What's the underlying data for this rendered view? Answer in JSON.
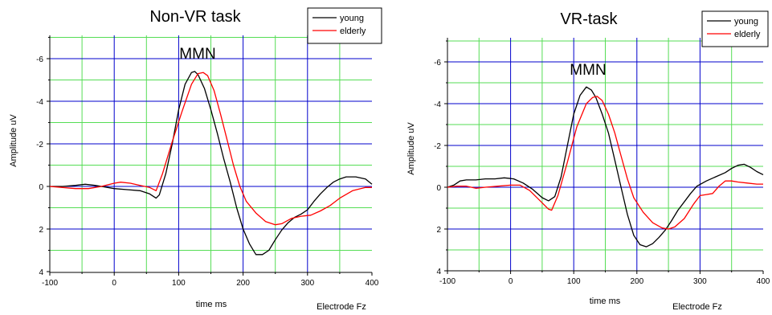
{
  "colors": {
    "young": "#000000",
    "elderly": "#ff0000",
    "major_grid": "#0000cc",
    "minor_grid": "#55dd55"
  },
  "chart_data": [
    {
      "type": "line",
      "title": "Non-VR task",
      "xlabel": "time ms",
      "ylabel": "Amplitude uV",
      "footer_label": "Electrode Fz",
      "annotation": "MMN",
      "xlim": [
        -100,
        400
      ],
      "ylim": [
        4,
        -7
      ],
      "y_inverted": true,
      "x_ticks": [
        "-100",
        "0",
        "100",
        "200",
        "300",
        "400"
      ],
      "y_ticks": [
        "-6",
        "-4",
        "-2",
        "0",
        "2",
        "4"
      ],
      "grid": true,
      "legend_position": "top-right",
      "series": [
        {
          "name": "young",
          "color_key": "young",
          "points": [
            [
              -100,
              0
            ],
            [
              -80,
              0
            ],
            [
              -60,
              -0.05
            ],
            [
              -45,
              -0.1
            ],
            [
              -30,
              -0.05
            ],
            [
              -10,
              0.05
            ],
            [
              0,
              0.1
            ],
            [
              20,
              0.15
            ],
            [
              40,
              0.2
            ],
            [
              55,
              0.35
            ],
            [
              65,
              0.55
            ],
            [
              70,
              0.4
            ],
            [
              80,
              -0.6
            ],
            [
              90,
              -2
            ],
            [
              100,
              -3.6
            ],
            [
              110,
              -4.8
            ],
            [
              120,
              -5.35
            ],
            [
              125,
              -5.4
            ],
            [
              130,
              -5.25
            ],
            [
              140,
              -4.6
            ],
            [
              150,
              -3.6
            ],
            [
              160,
              -2.5
            ],
            [
              170,
              -1.3
            ],
            [
              180,
              -0.2
            ],
            [
              190,
              1
            ],
            [
              200,
              2
            ],
            [
              210,
              2.7
            ],
            [
              220,
              3.2
            ],
            [
              230,
              3.2
            ],
            [
              240,
              3
            ],
            [
              250,
              2.5
            ],
            [
              260,
              2.05
            ],
            [
              270,
              1.7
            ],
            [
              280,
              1.45
            ],
            [
              290,
              1.3
            ],
            [
              300,
              1.1
            ],
            [
              310,
              0.7
            ],
            [
              320,
              0.35
            ],
            [
              330,
              0.05
            ],
            [
              340,
              -0.2
            ],
            [
              350,
              -0.35
            ],
            [
              360,
              -0.45
            ],
            [
              375,
              -0.45
            ],
            [
              390,
              -0.35
            ],
            [
              400,
              -0.1
            ]
          ]
        },
        {
          "name": "elderly",
          "color_key": "elderly",
          "points": [
            [
              -100,
              0
            ],
            [
              -80,
              0.05
            ],
            [
              -60,
              0.1
            ],
            [
              -40,
              0.1
            ],
            [
              -20,
              0
            ],
            [
              0,
              -0.15
            ],
            [
              10,
              -0.2
            ],
            [
              25,
              -0.15
            ],
            [
              40,
              -0.05
            ],
            [
              55,
              0.05
            ],
            [
              65,
              0.2
            ],
            [
              75,
              -0.6
            ],
            [
              90,
              -2.1
            ],
            [
              105,
              -3.5
            ],
            [
              120,
              -4.8
            ],
            [
              130,
              -5.3
            ],
            [
              138,
              -5.35
            ],
            [
              145,
              -5.2
            ],
            [
              155,
              -4.5
            ],
            [
              165,
              -3.4
            ],
            [
              175,
              -2.2
            ],
            [
              185,
              -1
            ],
            [
              195,
              0
            ],
            [
              205,
              0.7
            ],
            [
              220,
              1.25
            ],
            [
              235,
              1.65
            ],
            [
              250,
              1.8
            ],
            [
              260,
              1.75
            ],
            [
              275,
              1.5
            ],
            [
              290,
              1.4
            ],
            [
              305,
              1.35
            ],
            [
              320,
              1.15
            ],
            [
              335,
              0.9
            ],
            [
              350,
              0.55
            ],
            [
              370,
              0.2
            ],
            [
              390,
              0.05
            ],
            [
              400,
              0.05
            ]
          ]
        }
      ]
    },
    {
      "type": "line",
      "title": "VR-task",
      "xlabel": "time ms",
      "ylabel": "Amplitude uV",
      "footer_label": "Electrode Fz",
      "annotation": "MMN",
      "xlim": [
        -100,
        400
      ],
      "ylim": [
        4,
        -7
      ],
      "y_inverted": true,
      "x_ticks": [
        "-100",
        "0",
        "100",
        "200",
        "300",
        "400"
      ],
      "y_ticks": [
        "-6",
        "-4",
        "-2",
        "0",
        "2",
        "4"
      ],
      "grid": true,
      "legend_position": "top-right",
      "series": [
        {
          "name": "young",
          "color_key": "young",
          "points": [
            [
              -100,
              0
            ],
            [
              -90,
              -0.1
            ],
            [
              -80,
              -0.3
            ],
            [
              -70,
              -0.35
            ],
            [
              -55,
              -0.35
            ],
            [
              -40,
              -0.4
            ],
            [
              -25,
              -0.4
            ],
            [
              -10,
              -0.45
            ],
            [
              5,
              -0.4
            ],
            [
              20,
              -0.2
            ],
            [
              35,
              0.1
            ],
            [
              50,
              0.5
            ],
            [
              60,
              0.65
            ],
            [
              70,
              0.45
            ],
            [
              80,
              -0.5
            ],
            [
              90,
              -2
            ],
            [
              100,
              -3.5
            ],
            [
              110,
              -4.4
            ],
            [
              120,
              -4.8
            ],
            [
              128,
              -4.65
            ],
            [
              135,
              -4.3
            ],
            [
              145,
              -3.5
            ],
            [
              155,
              -2.6
            ],
            [
              165,
              -1.3
            ],
            [
              175,
              0
            ],
            [
              185,
              1.3
            ],
            [
              195,
              2.3
            ],
            [
              205,
              2.75
            ],
            [
              215,
              2.85
            ],
            [
              225,
              2.7
            ],
            [
              235,
              2.4
            ],
            [
              245,
              2.05
            ],
            [
              255,
              1.6
            ],
            [
              265,
              1.1
            ],
            [
              275,
              0.7
            ],
            [
              285,
              0.3
            ],
            [
              295,
              -0.05
            ],
            [
              310,
              -0.3
            ],
            [
              325,
              -0.5
            ],
            [
              340,
              -0.7
            ],
            [
              350,
              -0.9
            ],
            [
              360,
              -1.05
            ],
            [
              370,
              -1.1
            ],
            [
              380,
              -0.95
            ],
            [
              390,
              -0.75
            ],
            [
              400,
              -0.6
            ]
          ]
        },
        {
          "name": "elderly",
          "color_key": "elderly",
          "points": [
            [
              -100,
              0
            ],
            [
              -85,
              -0.05
            ],
            [
              -70,
              -0.05
            ],
            [
              -55,
              0.05
            ],
            [
              -40,
              0
            ],
            [
              -20,
              -0.05
            ],
            [
              0,
              -0.1
            ],
            [
              15,
              -0.1
            ],
            [
              30,
              0.15
            ],
            [
              45,
              0.6
            ],
            [
              60,
              1.05
            ],
            [
              65,
              1.1
            ],
            [
              75,
              0.4
            ],
            [
              90,
              -1.2
            ],
            [
              105,
              -2.9
            ],
            [
              120,
              -4
            ],
            [
              130,
              -4.3
            ],
            [
              137,
              -4.35
            ],
            [
              145,
              -4.15
            ],
            [
              155,
              -3.5
            ],
            [
              165,
              -2.6
            ],
            [
              175,
              -1.5
            ],
            [
              185,
              -0.4
            ],
            [
              195,
              0.5
            ],
            [
              210,
              1.2
            ],
            [
              225,
              1.7
            ],
            [
              240,
              1.95
            ],
            [
              250,
              2
            ],
            [
              260,
              1.9
            ],
            [
              275,
              1.5
            ],
            [
              290,
              0.8
            ],
            [
              300,
              0.4
            ],
            [
              310,
              0.35
            ],
            [
              320,
              0.3
            ],
            [
              330,
              -0.05
            ],
            [
              340,
              -0.3
            ],
            [
              350,
              -0.3
            ],
            [
              360,
              -0.25
            ],
            [
              375,
              -0.2
            ],
            [
              390,
              -0.15
            ],
            [
              400,
              -0.15
            ]
          ]
        }
      ]
    }
  ]
}
